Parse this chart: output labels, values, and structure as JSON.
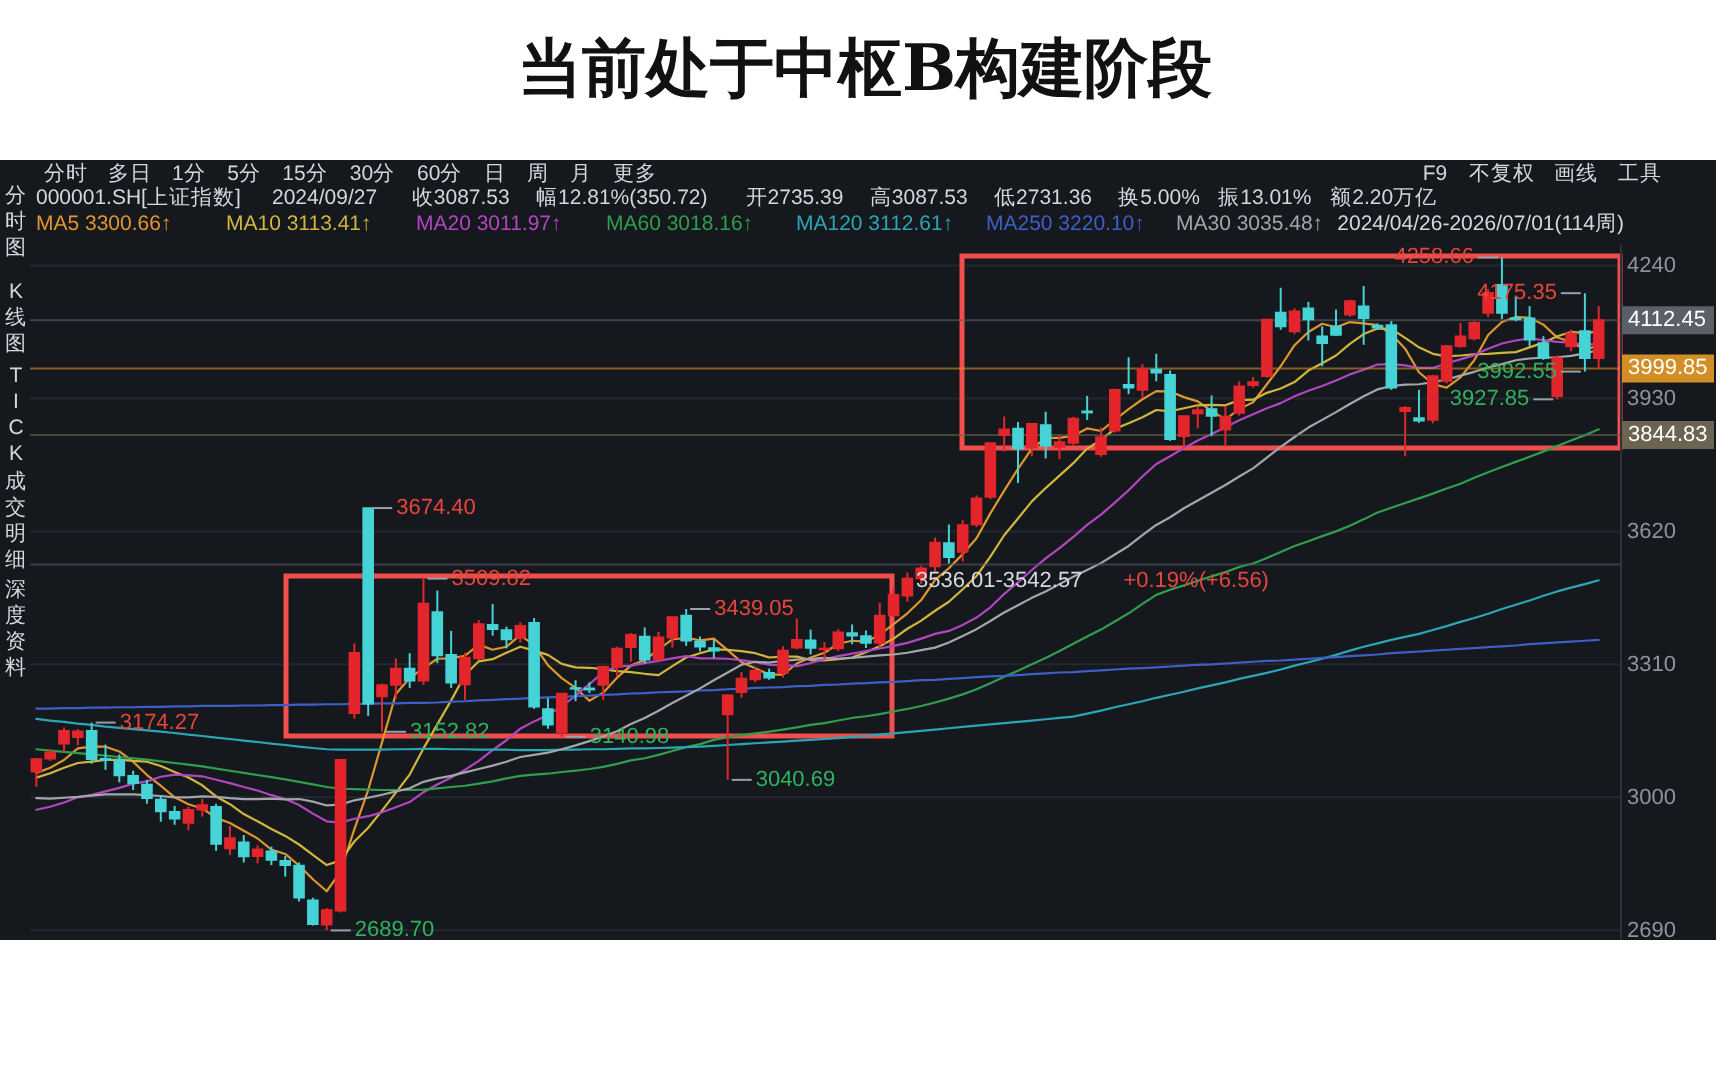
{
  "chart_data": {
    "type": "candlestick",
    "title": "当前处于中枢B构建阶段",
    "subtitle": "000001.SH[上证指数] 2024/09/27 收3087.53 幅12.81%(350.72) 开2735.39 高3087.53 低2731.36 换5.00% 振13.01% 额2.20万亿",
    "annotations": [
      "分时 多日 1分 5分 15分 30分 60分 日 周 月 更多",
      "F9 不复权 画线 工具",
      "2024/04/26-2026/07/01(114周)",
      "分时图",
      "K线图",
      "TICK",
      "成交明细",
      "深度资料",
      "3174.27",
      "2689.70",
      "3674.40",
      "3152.82",
      "3509.82",
      "3140.98",
      "3439.05",
      "3040.69",
      "4258.66",
      "4175.35",
      "3992.55",
      "3927.85",
      {
        "text": "3536.01-3542.57",
        "y": 3542.57
      },
      {
        "text": "+0.19%(+6.56)",
        "y": 3542.57
      }
    ],
    "categories": [
      null,
      null,
      null,
      null,
      null,
      null,
      null,
      null,
      null,
      null,
      null,
      null,
      null,
      null,
      null,
      null,
      null,
      null,
      null,
      null,
      null,
      null,
      null,
      null,
      null,
      null,
      null,
      null,
      null,
      null,
      null,
      null,
      null,
      null,
      null,
      null,
      null,
      null,
      null,
      null,
      null,
      null,
      null,
      null,
      null,
      null,
      null,
      null,
      null,
      null,
      null,
      null,
      null,
      null,
      null,
      null,
      null,
      null,
      null,
      null,
      null,
      null,
      null,
      null,
      null,
      null,
      null,
      null,
      null,
      null,
      null,
      null,
      null,
      null,
      null,
      null,
      null,
      null,
      null,
      null,
      null,
      null,
      null,
      null,
      null,
      null,
      null,
      null,
      null,
      null,
      null,
      null,
      null,
      null,
      null,
      null,
      null,
      null,
      null,
      null,
      null,
      null,
      null,
      null,
      null,
      null,
      null,
      null,
      null,
      null,
      null,
      null,
      null,
      null
    ],
    "ohlc": [
      [
        3060,
        3092,
        3024,
        3089
      ],
      [
        3090,
        3111,
        3085,
        3105
      ],
      [
        3125,
        3163,
        3105,
        3155
      ],
      [
        3140,
        3159,
        3121,
        3154
      ],
      [
        3155,
        3174.27,
        3078,
        3089
      ],
      [
        3090,
        3123,
        3064,
        3087
      ],
      [
        3087,
        3100,
        3035,
        3051
      ],
      [
        3050,
        3062,
        3017,
        3033
      ],
      [
        3030,
        3041,
        2985,
        2998
      ],
      [
        2995,
        3005,
        2943,
        2967
      ],
      [
        2966,
        2980,
        2936,
        2950
      ],
      [
        2940,
        2978,
        2923,
        2971
      ],
      [
        2971,
        2996,
        2955,
        2982
      ],
      [
        2978,
        2985,
        2875,
        2891
      ],
      [
        2881,
        2933,
        2865,
        2905
      ],
      [
        2895,
        2912,
        2848,
        2862
      ],
      [
        2863,
        2888,
        2846,
        2879
      ],
      [
        2874,
        2885,
        2842,
        2854
      ],
      [
        2852,
        2863,
        2815,
        2842
      ],
      [
        2841,
        2848,
        2757,
        2766
      ],
      [
        2760,
        2766,
        2701,
        2704
      ],
      [
        2703,
        2742,
        2689.7,
        2737
      ],
      [
        2735.39,
        3087.53,
        2731.36,
        3087.53
      ],
      [
        3196,
        3359,
        3183,
        3337
      ],
      [
        3674.4,
        3674.4,
        3190,
        3218
      ],
      [
        3235,
        3265,
        3152.82,
        3262
      ],
      [
        3262,
        3324,
        3230,
        3300
      ],
      [
        3300,
        3336,
        3255,
        3272
      ],
      [
        3272,
        3509.82,
        3262,
        3452
      ],
      [
        3432,
        3482,
        3313,
        3331
      ],
      [
        3332,
        3388,
        3255,
        3267
      ],
      [
        3263,
        3337,
        3227,
        3326
      ],
      [
        3324,
        3413,
        3320,
        3404
      ],
      [
        3402,
        3451,
        3377,
        3392
      ],
      [
        3390,
        3398,
        3347,
        3368
      ],
      [
        3372,
        3408,
        3361,
        3400
      ],
      [
        3407,
        3418,
        3206,
        3211
      ],
      [
        3206,
        3231,
        3160,
        3169
      ],
      [
        3152,
        3243,
        3140.98,
        3242
      ],
      [
        3255,
        3273,
        3224,
        3253
      ],
      [
        3254,
        3268,
        3243,
        3251
      ],
      [
        3262,
        3307,
        3227,
        3304
      ],
      [
        3304,
        3351,
        3283,
        3347
      ],
      [
        3350,
        3383,
        3316,
        3379
      ],
      [
        3375,
        3396,
        3312,
        3321
      ],
      [
        3322,
        3386,
        3315,
        3373
      ],
      [
        3372,
        3420,
        3349,
        3420
      ],
      [
        3424,
        3439.05,
        3353,
        3365
      ],
      [
        3363,
        3375,
        3340,
        3351
      ],
      [
        3348,
        3367,
        3325,
        3342
      ],
      [
        3193,
        3240,
        3040.69,
        3238
      ],
      [
        3245,
        3292,
        3232,
        3277
      ],
      [
        3275,
        3305,
        3268,
        3295
      ],
      [
        3290,
        3300,
        3274,
        3279
      ],
      [
        3290,
        3352,
        3279,
        3342
      ],
      [
        3349,
        3417,
        3345,
        3367
      ],
      [
        3366,
        3391,
        3333,
        3348
      ],
      [
        3345,
        3362,
        3321,
        3347
      ],
      [
        3347,
        3392,
        3341,
        3385
      ],
      [
        3383,
        3403,
        3357,
        3377
      ],
      [
        3376,
        3389,
        3348,
        3360
      ],
      [
        3360,
        3454,
        3350,
        3424
      ],
      [
        3424,
        3492,
        3420,
        3472
      ],
      [
        3470,
        3524,
        3456,
        3510
      ],
      [
        3510,
        3540,
        3497,
        3534
      ],
      [
        3538,
        3606,
        3526,
        3594
      ],
      [
        3593,
        3636,
        3545,
        3560
      ],
      [
        3572,
        3646,
        3550,
        3635
      ],
      [
        3636,
        3704,
        3630,
        3697
      ],
      [
        3700,
        3826,
        3695,
        3826
      ],
      [
        3845,
        3888,
        3806,
        3858
      ],
      [
        3860,
        3875,
        3733,
        3813
      ],
      [
        3815,
        3872,
        3795,
        3871
      ],
      [
        3868,
        3899,
        3790,
        3820
      ],
      [
        3817,
        3845,
        3788,
        3828
      ],
      [
        3826,
        3887,
        3820,
        3883
      ],
      [
        3900,
        3936,
        3880,
        3897
      ],
      [
        3800,
        3862,
        3794,
        3840
      ],
      [
        3855,
        3953,
        3850,
        3950
      ],
      [
        3962,
        4026,
        3940,
        3955
      ],
      [
        3950,
        4010,
        3930,
        3998
      ],
      [
        3997,
        4034,
        3970,
        3990
      ],
      [
        3985,
        3995,
        3831,
        3835
      ],
      [
        3842,
        3890,
        3815,
        3889
      ],
      [
        3895,
        3910,
        3860,
        3903
      ],
      [
        3905,
        3937,
        3842,
        3889
      ],
      [
        3857,
        3912,
        3818,
        3888
      ],
      [
        3896,
        3970,
        3890,
        3958
      ],
      [
        3961,
        3980,
        3955,
        3968
      ],
      [
        3982,
        4116,
        3978,
        4114
      ],
      [
        4130,
        4188,
        4090,
        4098
      ],
      [
        4086,
        4140,
        4080,
        4133
      ],
      [
        4140,
        4155,
        4065,
        4114
      ],
      [
        4075,
        4098,
        4005,
        4059
      ],
      [
        4098,
        4137,
        4075,
        4078
      ],
      [
        4125,
        4160,
        4120,
        4157
      ],
      [
        4145,
        4192,
        4055,
        4117
      ],
      [
        4100,
        4105,
        4090,
        4095
      ],
      [
        4101,
        4110,
        3950,
        3955
      ],
      [
        3900,
        3912,
        3795,
        3908
      ],
      [
        3884,
        3950,
        3873,
        3878
      ],
      [
        3880,
        3985,
        3872,
        3982
      ],
      [
        3971,
        4055,
        3965,
        4052
      ],
      [
        4052,
        4106,
        4048,
        4075
      ],
      [
        4070,
        4110,
        4065,
        4106
      ],
      [
        4129,
        4185,
        4120,
        4176
      ],
      [
        4195,
        4258.66,
        4115,
        4129
      ],
      [
        4117,
        4168,
        4110,
        4114
      ],
      [
        4117,
        4145,
        4052,
        4067
      ],
      [
        4059,
        4075,
        4020,
        4024
      ],
      [
        3935,
        4030,
        3927.85,
        4024
      ],
      [
        4051,
        4090,
        4040,
        4082
      ],
      [
        4087,
        4175.35,
        3992.55,
        4024
      ],
      [
        4024,
        4145,
        3999,
        4112.45
      ]
    ],
    "colors": [
      "#e3262b",
      "#e3262b",
      "#e3262b",
      "#e3262b",
      "#46d3d6",
      "#46d3d6",
      "#46d3d6",
      "#46d3d6",
      "#46d3d6",
      "#46d3d6",
      "#46d3d6",
      "#e3262b",
      "#e3262b",
      "#46d3d6",
      "#e3262b",
      "#46d3d6",
      "#e3262b",
      "#46d3d6",
      "#46d3d6",
      "#46d3d6",
      "#46d3d6",
      "#e3262b",
      "#e3262b",
      "#e3262b",
      "#46d3d6",
      "#e3262b",
      "#e3262b",
      "#46d3d6",
      "#e3262b",
      "#46d3d6",
      "#46d3d6",
      "#e3262b",
      "#e3262b",
      "#46d3d6",
      "#46d3d6",
      "#e3262b",
      "#46d3d6",
      "#46d3d6",
      "#e3262b",
      "#46d3d6",
      "#46d3d6",
      "#e3262b",
      "#e3262b",
      "#e3262b",
      "#46d3d6",
      "#e3262b",
      "#e3262b",
      "#46d3d6",
      "#46d3d6",
      "#46d3d6",
      "#e3262b",
      "#e3262b",
      "#e3262b",
      "#46d3d6",
      "#e3262b",
      "#e3262b",
      "#46d3d6",
      "#e3262b",
      "#e3262b",
      "#46d3d6",
      "#46d3d6",
      "#e3262b",
      "#e3262b",
      "#e3262b",
      "#e3262b",
      "#e3262b",
      "#46d3d6",
      "#e3262b",
      "#e3262b",
      "#e3262b",
      "#e3262b",
      "#46d3d6",
      "#e3262b",
      "#46d3d6",
      "#e3262b",
      "#e3262b",
      "#46d3d6",
      "#e3262b",
      "#e3262b",
      "#46d3d6",
      "#e3262b",
      "#46d3d6",
      "#46d3d6",
      "#e3262b",
      "#e3262b",
      "#46d3d6",
      "#e3262b",
      "#e3262b",
      "#e3262b",
      "#e3262b",
      "#46d3d6",
      "#e3262b",
      "#46d3d6",
      "#46d3d6",
      "#46d3d6",
      "#e3262b",
      "#46d3d6",
      "#46d3d6",
      "#46d3d6",
      "#e3262b",
      "#46d3d6",
      "#e3262b",
      "#e3262b",
      "#e3262b",
      "#e3262b",
      "#e3262b",
      "#46d3d6",
      "#46d3d6",
      "#46d3d6",
      "#46d3d6",
      "#e3262b",
      "#e3262b",
      "#46d3d6",
      "#e3262b"
    ],
    "series": [
      {
        "name": "MA5 3300.66↑",
        "type": "line",
        "color": "#e0962e",
        "values": [
          3057,
          3069,
          3087,
          3114,
          3118,
          3118,
          3107,
          3083,
          3052,
          3027,
          3000,
          2984,
          2974,
          2952,
          2940,
          2922,
          2904,
          2878,
          2868,
          2841,
          2809,
          2781,
          2827,
          2926,
          3017,
          3128,
          3241,
          3278,
          3301,
          3323,
          3324,
          3330,
          3356,
          3344,
          3351,
          3378,
          3355,
          3308,
          3278,
          3255,
          3225,
          3244,
          3279,
          3307,
          3320,
          3345,
          3368,
          3372,
          3366,
          3370,
          3343,
          3315,
          3301,
          3286,
          3286,
          3312,
          3326,
          3337,
          3358,
          3365,
          3363,
          3379,
          3404,
          3429,
          3460,
          3507,
          3534,
          3567,
          3604,
          3662,
          3715,
          3766,
          3813,
          3838,
          3838,
          3843,
          3860,
          3854,
          3880,
          3905,
          3928,
          3947,
          3946,
          3933,
          3923,
          3901,
          3881,
          3905,
          3921,
          3963,
          4005,
          4054,
          4085,
          4104,
          4096,
          4108,
          4105,
          4101,
          4080,
          4046,
          3991,
          3964,
          3955,
          3979,
          4019,
          4078,
          4108,
          4120,
          4118,
          4102,
          4072,
          4062,
          4044,
          4053
        ]
      },
      {
        "name": "MA10 3113.41↑",
        "type": "line",
        "color": "#d2b63c",
        "values": [
          3046,
          3056,
          3069,
          3080,
          3083,
          3087,
          3088,
          3085,
          3083,
          3073,
          3059,
          3046,
          3028,
          3002,
          2984,
          2961,
          2944,
          2926,
          2910,
          2890,
          2866,
          2842,
          2853,
          2897,
          2929,
          2969,
          3011,
          3053,
          3114,
          3170,
          3226,
          3285,
          3317,
          3322,
          3337,
          3351,
          3342,
          3332,
          3311,
          3303,
          3302,
          3299,
          3294,
          3292,
          3288,
          3285,
          3306,
          3326,
          3336,
          3345,
          3344,
          3341,
          3336,
          3326,
          3328,
          3328,
          3320,
          3319,
          3322,
          3326,
          3338,
          3352,
          3370,
          3393,
          3412,
          3435,
          3456,
          3485,
          3516,
          3561,
          3611,
          3650,
          3690,
          3721,
          3750,
          3779,
          3813,
          3833,
          3859,
          3872,
          3886,
          3903,
          3900,
          3907,
          3914,
          3915,
          3914,
          3926,
          3927,
          3943,
          3953,
          3968,
          3995,
          4012,
          4030,
          4057,
          4080,
          4093,
          4092,
          4071,
          4049,
          4034,
          4028,
          4030,
          4033,
          4034,
          4036,
          4038,
          4049,
          4060,
          4075,
          4085,
          4082,
          4086
        ]
      },
      {
        "name": "MA20 3011.97↑",
        "type": "line",
        "color": "#b246c0",
        "values": [
          2971,
          2978,
          2988,
          3000,
          3006,
          3014,
          3022,
          3032,
          3037,
          3048,
          3053,
          3051,
          3049,
          3041,
          3033,
          3024,
          3016,
          3005,
          2996,
          2982,
          2962,
          2944,
          2941,
          2950,
          2956,
          2965,
          2977,
          2989,
          3012,
          3030,
          3046,
          3064,
          3085,
          3110,
          3133,
          3160,
          3177,
          3192,
          3212,
          3237,
          3264,
          3292,
          3305,
          3307,
          3313,
          3318,
          3324,
          3329,
          3324,
          3324,
          3323,
          3320,
          3315,
          3309,
          3308,
          3306,
          3313,
          3322,
          3329,
          3335,
          3341,
          3347,
          3353,
          3360,
          3370,
          3381,
          3388,
          3402,
          3419,
          3443,
          3474,
          3501,
          3530,
          3557,
          3581,
          3607,
          3635,
          3659,
          3687,
          3716,
          3748,
          3777,
          3795,
          3814,
          3832,
          3847,
          3863,
          3879,
          3893,
          3907,
          3919,
          3935,
          3948,
          3959,
          3972,
          3986,
          3997,
          4009,
          4010,
          4007,
          4001,
          4001,
          4012,
          4021,
          4031,
          4046,
          4058,
          4065,
          4070,
          4066,
          4062,
          4060,
          4055,
          4058
        ]
      },
      {
        "name": "MA60 3018.16↑",
        "type": "line",
        "color": "#2f9e4d",
        "values": [
          3112,
          3109,
          3106,
          3103,
          3100,
          3097,
          3094,
          3091,
          3088,
          3084,
          3080,
          3076,
          3072,
          3067,
          3062,
          3057,
          3052,
          3047,
          3042,
          3036,
          3030,
          3024,
          3020,
          3019,
          3018,
          3017,
          3017,
          3017,
          3018,
          3021,
          3024,
          3027,
          3032,
          3037,
          3044,
          3050,
          3053,
          3055,
          3059,
          3062,
          3066,
          3071,
          3078,
          3086,
          3091,
          3099,
          3108,
          3117,
          3124,
          3134,
          3140,
          3145,
          3149,
          3153,
          3158,
          3163,
          3169,
          3173,
          3179,
          3185,
          3189,
          3194,
          3200,
          3206,
          3213,
          3221,
          3230,
          3240,
          3252,
          3266,
          3281,
          3295,
          3310,
          3325,
          3341,
          3358,
          3375,
          3391,
          3410,
          3429,
          3451,
          3472,
          3484,
          3494,
          3505,
          3515,
          3525,
          3537,
          3545,
          3558,
          3572,
          3586,
          3597,
          3609,
          3620,
          3633,
          3648,
          3664,
          3675,
          3686,
          3697,
          3708,
          3720,
          3731,
          3745,
          3758,
          3770,
          3782,
          3794,
          3806,
          3819,
          3832,
          3844,
          3858
        ]
      },
      {
        "name": "MA120 3112.61↑",
        "type": "line",
        "color": "#2ba6b5",
        "values": [
          3183,
          3179,
          3176,
          3172,
          3169,
          3165,
          3162,
          3159,
          3156,
          3153,
          3150,
          3146,
          3143,
          3139,
          3136,
          3132,
          3129,
          3125,
          3122,
          3118,
          3115,
          3112,
          3111,
          3111,
          3111,
          3111,
          3112,
          3112,
          3113,
          3113,
          3112,
          3112,
          3111,
          3111,
          3111,
          3110,
          3110,
          3110,
          3111,
          3111,
          3112,
          3112,
          3113,
          3114,
          3114,
          3115,
          3116,
          3117,
          3118,
          3120,
          3122,
          3124,
          3126,
          3128,
          3130,
          3132,
          3134,
          3136,
          3138,
          3141,
          3143,
          3146,
          3149,
          3152,
          3155,
          3158,
          3161,
          3164,
          3167,
          3170,
          3173,
          3176,
          3179,
          3182,
          3185,
          3188,
          3195,
          3202,
          3210,
          3217,
          3224,
          3232,
          3239,
          3246,
          3254,
          3261,
          3268,
          3276,
          3283,
          3290,
          3298,
          3307,
          3315,
          3323,
          3332,
          3342,
          3351,
          3359,
          3367,
          3374,
          3381,
          3390,
          3399,
          3409,
          3418,
          3428,
          3439,
          3449,
          3459,
          3470,
          3480,
          3489,
          3497,
          3506
        ]
      },
      {
        "name": "MA250 3220.10↑",
        "type": "line",
        "color": "#3f5fc8",
        "values": [
          3207,
          3207,
          3208,
          3208,
          3209,
          3209,
          3210,
          3210,
          3211,
          3211,
          3212,
          3212,
          3213,
          3213,
          3213,
          3214,
          3214,
          3215,
          3215,
          3216,
          3216,
          3217,
          3217,
          3218,
          3218,
          3219,
          3219,
          3220,
          3220,
          3221,
          3223,
          3224,
          3226,
          3227,
          3229,
          3230,
          3232,
          3233,
          3234,
          3236,
          3237,
          3239,
          3240,
          3242,
          3243,
          3245,
          3246,
          3247,
          3249,
          3250,
          3252,
          3253,
          3255,
          3256,
          3257,
          3259,
          3260,
          3262,
          3263,
          3265,
          3266,
          3268,
          3269,
          3271,
          3273,
          3274,
          3276,
          3278,
          3280,
          3282,
          3283,
          3285,
          3287,
          3289,
          3291,
          3292,
          3294,
          3296,
          3298,
          3300,
          3301,
          3303,
          3305,
          3307,
          3309,
          3310,
          3312,
          3314,
          3316,
          3318,
          3319,
          3321,
          3323,
          3325,
          3327,
          3329,
          3331,
          3333,
          3336,
          3338,
          3340,
          3342,
          3344,
          3346,
          3348,
          3350,
          3352,
          3354,
          3357,
          3359,
          3361,
          3363,
          3365,
          3367
        ]
      },
      {
        "name": "MA30 3035.48↑",
        "type": "line",
        "color": "#a3a6ab",
        "values": [
          2998,
          2997,
          2999,
          3001,
          3004,
          3007,
          3007,
          3007,
          3005,
          3003,
          3000,
          3000,
          3002,
          3001,
          2998,
          2996,
          2996,
          2997,
          2995,
          2996,
          2990,
          2981,
          2983,
          2993,
          2999,
          3006,
          3014,
          3021,
          3036,
          3044,
          3050,
          3058,
          3066,
          3074,
          3083,
          3094,
          3099,
          3104,
          3112,
          3121,
          3131,
          3142,
          3154,
          3171,
          3185,
          3202,
          3220,
          3237,
          3254,
          3273,
          3291,
          3309,
          3316,
          3314,
          3318,
          3321,
          3323,
          3325,
          3323,
          3325,
          3328,
          3331,
          3333,
          3337,
          3343,
          3349,
          3361,
          3376,
          3392,
          3411,
          3431,
          3448,
          3465,
          3480,
          3497,
          3514,
          3530,
          3546,
          3566,
          3586,
          3611,
          3635,
          3653,
          3674,
          3692,
          3710,
          3728,
          3748,
          3767,
          3792,
          3817,
          3840,
          3862,
          3880,
          3898,
          3917,
          3935,
          3951,
          3959,
          3962,
          3963,
          3968,
          3974,
          3983,
          3992,
          4002,
          4010,
          4019,
          4023,
          4025,
          4026,
          4029,
          4035,
          4043
        ]
      }
    ],
    "ylim": [
      2672,
      4290
    ],
    "yticks": [
      2690,
      3000,
      3310,
      3620,
      3930,
      4240
    ],
    "tick_labels": "y",
    "grid": "y",
    "legend": "top left",
    "ref_lines": [
      {
        "axis": "y",
        "value": 4112.45,
        "label": "4112.45",
        "color": "#5b6068"
      },
      {
        "axis": "y",
        "value": 3999.85,
        "label": "3999.85",
        "color": "#d38f25"
      },
      {
        "axis": "y",
        "value": 3844.83,
        "label": "3844.83",
        "color": "#6c6352"
      },
      {
        "axis": "y",
        "value": 3542.57,
        "color": "#55585f"
      }
    ]
  }
}
